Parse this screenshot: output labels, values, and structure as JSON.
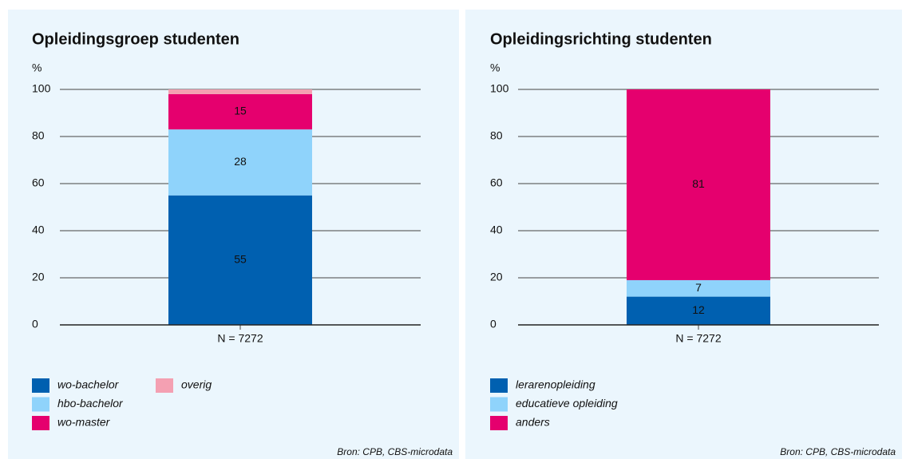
{
  "chart_data": [
    {
      "type": "bar",
      "stacked": true,
      "title": "Opleidingsgroep studenten",
      "ylabel": "%",
      "categories": [
        "N = 7272"
      ],
      "ylim": [
        0,
        100
      ],
      "yticks": [
        0,
        20,
        40,
        60,
        80,
        100
      ],
      "grid": true,
      "series": [
        {
          "name": "wo-bachelor",
          "color": "#0060b0",
          "values": [
            55
          ]
        },
        {
          "name": "hbo-bachelor",
          "color": "#8fd3fb",
          "values": [
            28
          ]
        },
        {
          "name": "wo-master",
          "color": "#e5006e",
          "values": [
            15
          ]
        },
        {
          "name": "overig",
          "color": "#f4a0b2",
          "values": [
            2
          ]
        }
      ],
      "source": "Bron: CPB, CBS-microdata"
    },
    {
      "type": "bar",
      "stacked": true,
      "title": "Opleidingsrichting studenten",
      "ylabel": "%",
      "categories": [
        "N = 7272"
      ],
      "ylim": [
        0,
        100
      ],
      "yticks": [
        0,
        20,
        40,
        60,
        80,
        100
      ],
      "grid": true,
      "series": [
        {
          "name": "lerarenopleiding",
          "color": "#0060b0",
          "values": [
            12
          ]
        },
        {
          "name": "educatieve opleiding",
          "color": "#8fd3fb",
          "values": [
            7
          ]
        },
        {
          "name": "anders",
          "color": "#e5006e",
          "values": [
            81
          ]
        }
      ],
      "source": "Bron: CPB, CBS-microdata"
    }
  ]
}
